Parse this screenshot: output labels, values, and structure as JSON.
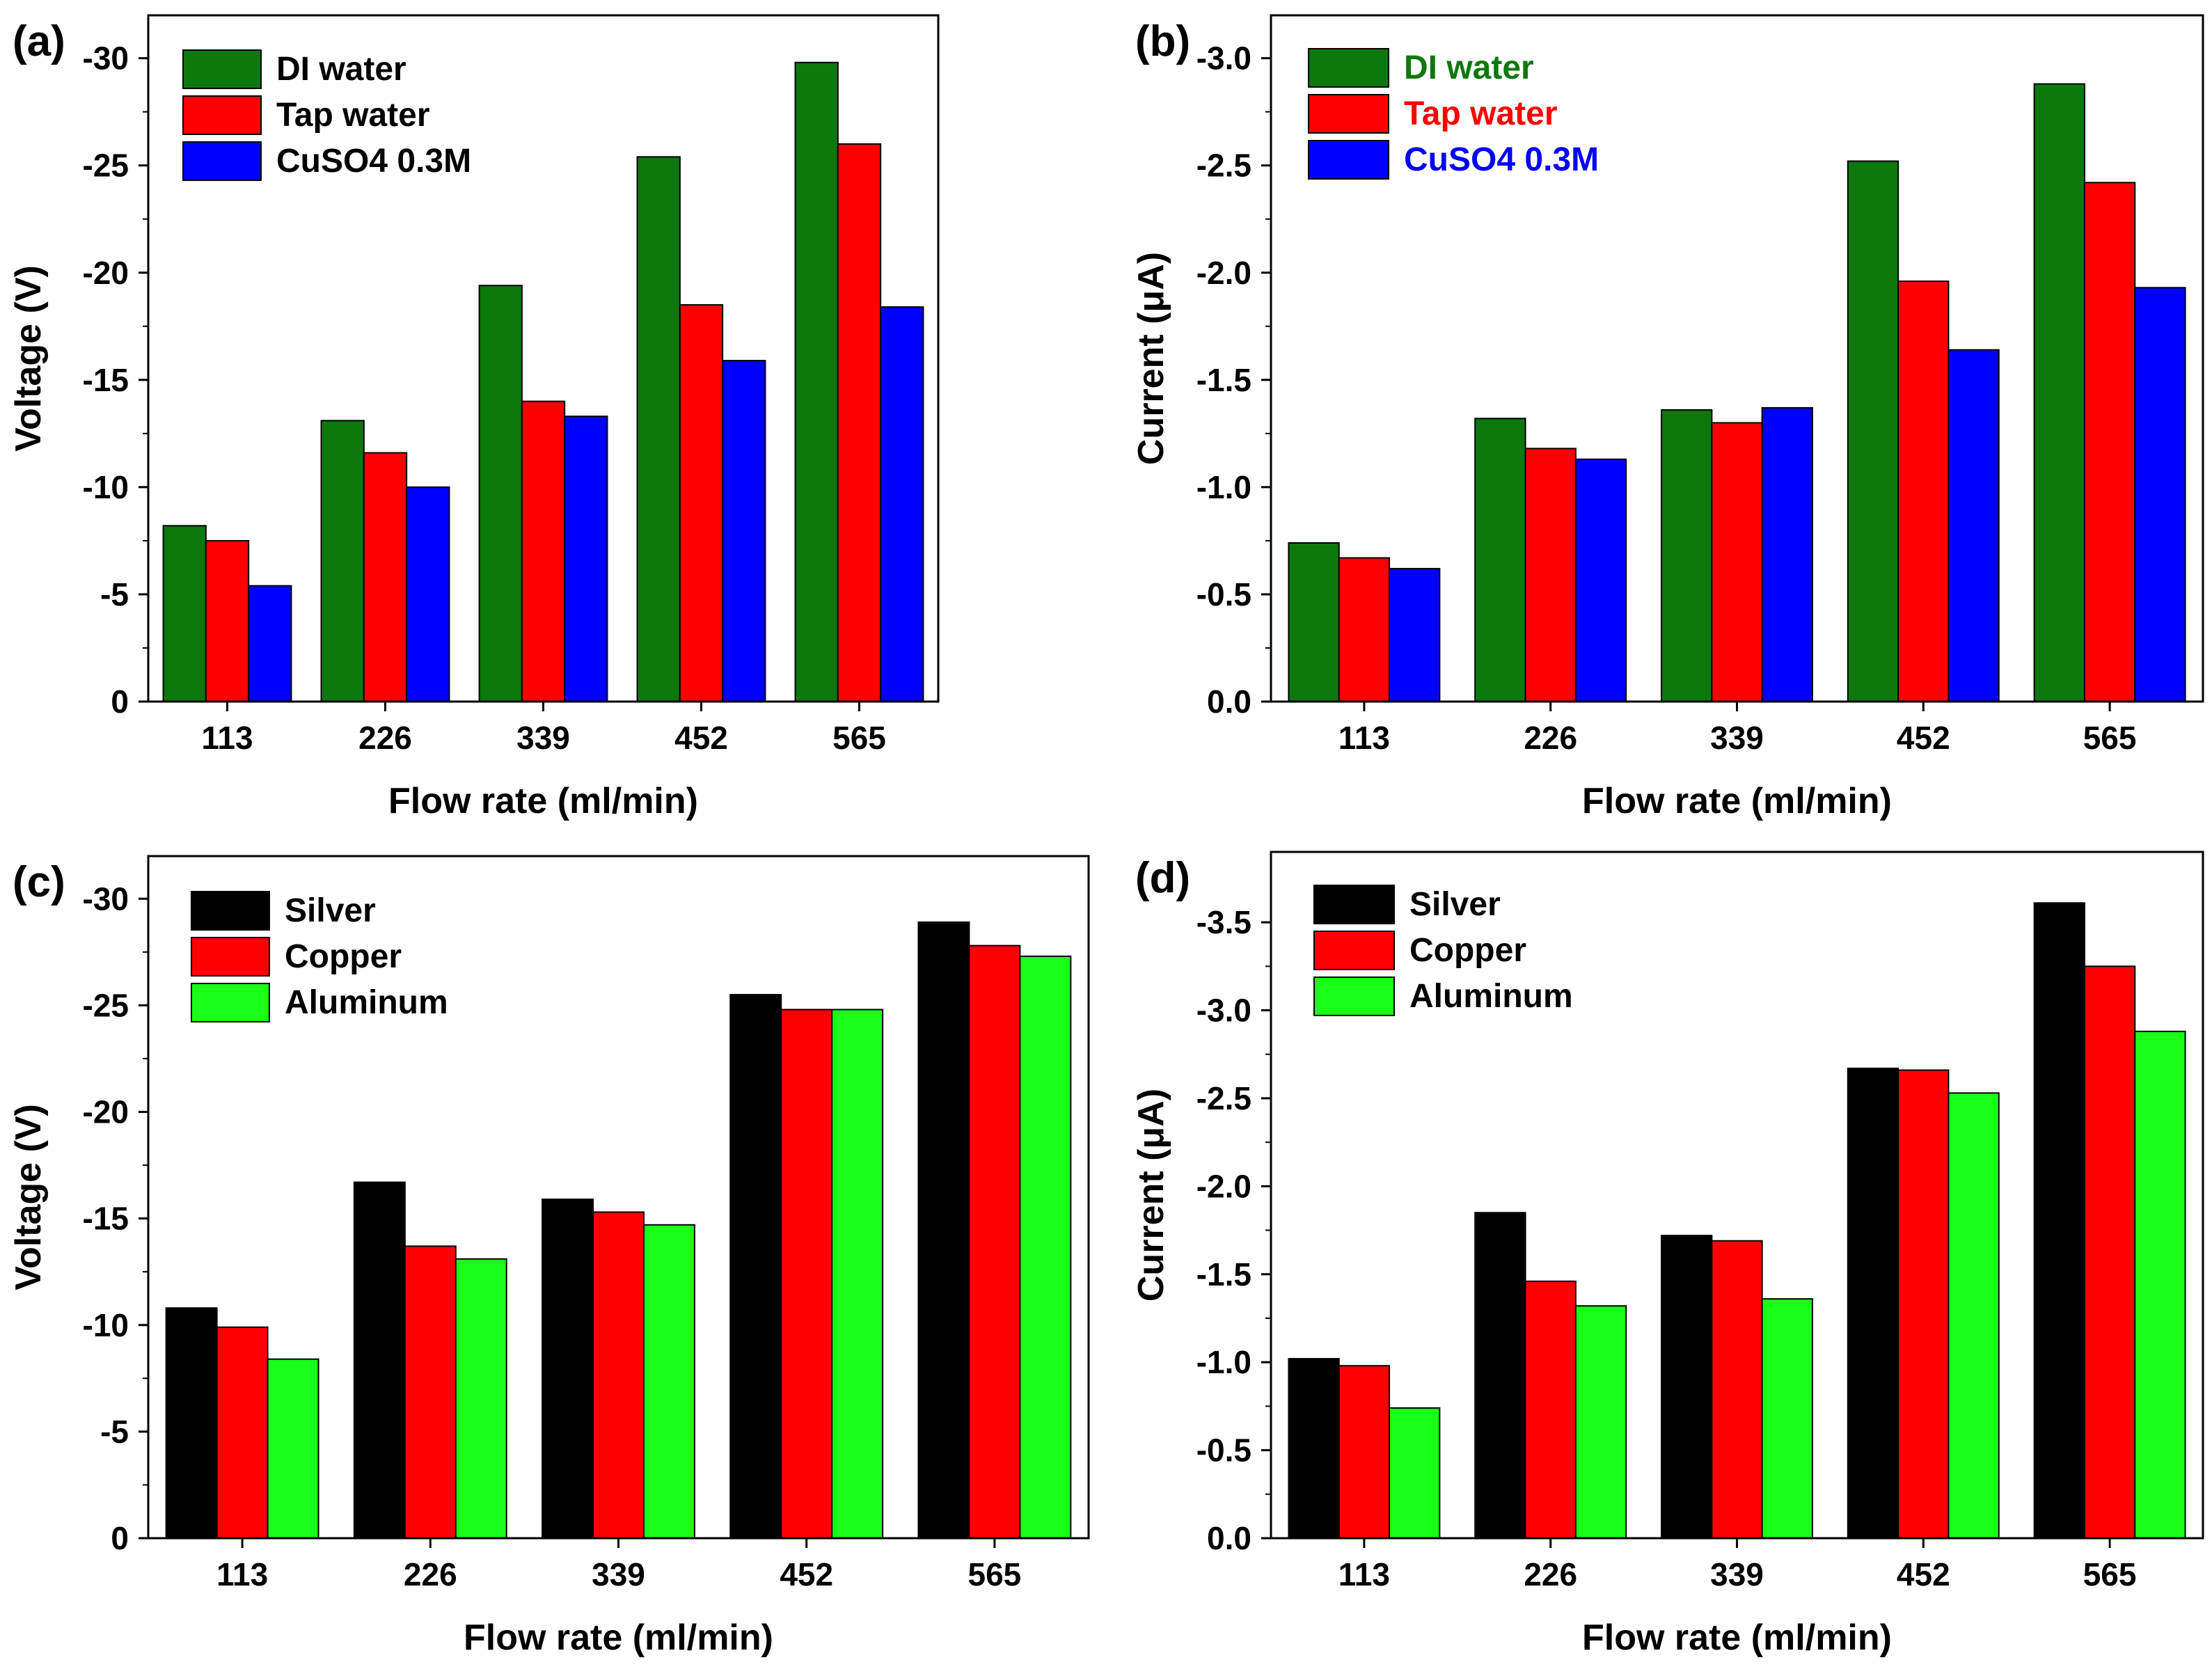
{
  "chart_data": [
    {
      "panel_label": "(a)",
      "type": "bar",
      "xlabel": "Flow rate (ml/min)",
      "ylabel": "Voltage (V)",
      "categories": [
        "113",
        "226",
        "339",
        "452",
        "565"
      ],
      "ylim": [
        0,
        -32
      ],
      "yticks": [
        0,
        -5,
        -10,
        -15,
        -20,
        -25,
        -30
      ],
      "ytick_labels": [
        "0",
        "-5",
        "-10",
        "-15",
        "-20",
        "-25",
        "-30"
      ],
      "legend_placement": "top-left",
      "legend_text_colored": false,
      "grid": false,
      "series": [
        {
          "name": "DI water",
          "color": "#0d780d",
          "values": [
            -8.2,
            -13.1,
            -19.4,
            -25.4,
            -29.8
          ]
        },
        {
          "name": "Tap water",
          "color": "#ff0000",
          "values": [
            -7.5,
            -11.6,
            -14.0,
            -18.5,
            -26.0
          ]
        },
        {
          "name": "CuSO4 0.3M",
          "color": "#0000ff",
          "values": [
            -5.4,
            -10.0,
            -13.3,
            -15.9,
            -18.4
          ]
        }
      ]
    },
    {
      "panel_label": "(b)",
      "type": "bar",
      "xlabel": "Flow rate (ml/min)",
      "ylabel": "Current (μA)",
      "categories": [
        "113",
        "226",
        "339",
        "452",
        "565"
      ],
      "ylim": [
        0,
        -3.2
      ],
      "yticks": [
        0,
        -0.5,
        -1.0,
        -1.5,
        -2.0,
        -2.5,
        -3.0
      ],
      "ytick_labels": [
        "0.0",
        "-0.5",
        "-1.0",
        "-1.5",
        "-2.0",
        "-2.5",
        "-3.0"
      ],
      "legend_placement": "top-left",
      "legend_text_colored": true,
      "grid": false,
      "series": [
        {
          "name": "DI water",
          "color": "#0d780d",
          "values": [
            -0.74,
            -1.32,
            -1.36,
            -2.52,
            -2.88
          ]
        },
        {
          "name": "Tap water",
          "color": "#ff0000",
          "values": [
            -0.67,
            -1.18,
            -1.3,
            -1.96,
            -2.42
          ]
        },
        {
          "name": "CuSO4 0.3M",
          "color": "#0000ff",
          "values": [
            -0.62,
            -1.13,
            -1.37,
            -1.64,
            -1.93
          ]
        }
      ]
    },
    {
      "panel_label": "(c)",
      "type": "bar",
      "xlabel": "Flow rate (ml/min)",
      "ylabel": "Voltage (V)",
      "categories": [
        "113",
        "226",
        "339",
        "452",
        "565"
      ],
      "ylim": [
        0,
        -32
      ],
      "yticks": [
        0,
        -5,
        -10,
        -15,
        -20,
        -25,
        -30
      ],
      "ytick_labels": [
        "0",
        "-5",
        "-10",
        "-15",
        "-20",
        "-25",
        "-30"
      ],
      "legend_placement": "top-left",
      "legend_text_colored": false,
      "grid": false,
      "series": [
        {
          "name": "Silver",
          "color": "#000000",
          "values": [
            -10.8,
            -16.7,
            -15.9,
            -25.5,
            -28.9
          ]
        },
        {
          "name": "Copper",
          "color": "#ff0000",
          "values": [
            -9.9,
            -13.7,
            -15.3,
            -24.8,
            -27.8
          ]
        },
        {
          "name": "Aluminum",
          "color": "#19ff19",
          "values": [
            -8.4,
            -13.1,
            -14.7,
            -24.8,
            -27.3
          ]
        }
      ]
    },
    {
      "panel_label": "(d)",
      "type": "bar",
      "xlabel": "Flow rate (ml/min)",
      "ylabel": "Current (μA)",
      "categories": [
        "113",
        "226",
        "339",
        "452",
        "565"
      ],
      "ylim": [
        0,
        -3.9
      ],
      "yticks": [
        0,
        -0.5,
        -1.0,
        -1.5,
        -2.0,
        -2.5,
        -3.0,
        -3.5
      ],
      "ytick_labels": [
        "0.0",
        "-0.5",
        "-1.0",
        "-1.5",
        "-2.0",
        "-2.5",
        "-3.0",
        "-3.5"
      ],
      "legend_placement": "top-left",
      "legend_text_colored": false,
      "grid": false,
      "series": [
        {
          "name": "Silver",
          "color": "#000000",
          "values": [
            -1.02,
            -1.85,
            -1.72,
            -2.67,
            -3.61
          ]
        },
        {
          "name": "Copper",
          "color": "#ff0000",
          "values": [
            -0.98,
            -1.46,
            -1.69,
            -2.66,
            -3.25
          ]
        },
        {
          "name": "Aluminum",
          "color": "#19ff19",
          "values": [
            -0.74,
            -1.32,
            -1.36,
            -2.53,
            -2.88
          ]
        }
      ]
    }
  ]
}
